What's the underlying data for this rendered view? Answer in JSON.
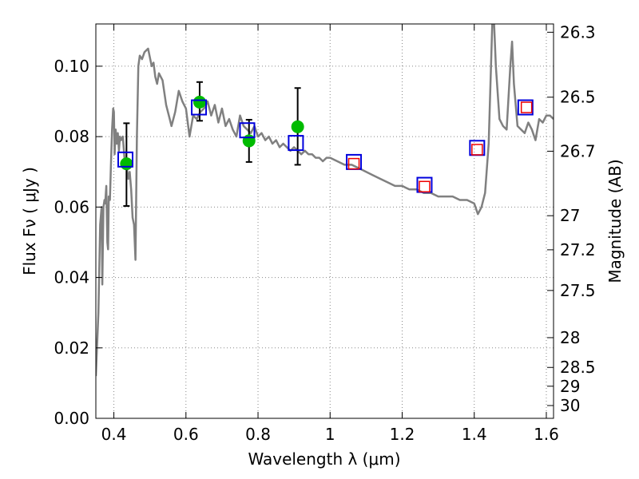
{
  "chart_data": {
    "type": "scatter",
    "xlabel": "Wavelength  λ (μm)",
    "ylabel": "Flux  Fν  ( μJy )",
    "y2label": "Magnitude (AB)",
    "xlim": [
      0.35,
      1.62
    ],
    "ylim": [
      0.0,
      0.112
    ],
    "grid": true,
    "xticks": [
      0.4,
      0.6,
      0.8,
      1.0,
      1.2,
      1.4,
      1.6
    ],
    "xtick_labels": [
      "0.4",
      "0.6",
      "0.8",
      "1",
      "1.2",
      "1.4",
      "1.6"
    ],
    "yticks": [
      0.0,
      0.02,
      0.04,
      0.06,
      0.08,
      0.1
    ],
    "ytick_labels": [
      "0.00",
      "0.02",
      "0.04",
      "0.06",
      "0.08",
      "0.10"
    ],
    "y2ticks": [
      26.3,
      26.5,
      26.7,
      27,
      27.2,
      27.5,
      28,
      28.5,
      29,
      30
    ],
    "y2tick_labels": [
      "26.3",
      "26.5",
      "26.7",
      "27",
      "27.2",
      "27.5",
      "28",
      "28.5",
      "29",
      "30"
    ],
    "colors": {
      "model": "#808080",
      "observed": "#00bb00",
      "errorbar": "#000000",
      "model_photometry": "#0000dd",
      "ir_photometry": "#ee0000",
      "grid": "#888888"
    },
    "model_sed": {
      "x": [
        0.35,
        0.357,
        0.362,
        0.366,
        0.368,
        0.371,
        0.374,
        0.376,
        0.379,
        0.382,
        0.384,
        0.386,
        0.389,
        0.392,
        0.395,
        0.398,
        0.4,
        0.402,
        0.405,
        0.408,
        0.411,
        0.414,
        0.417,
        0.42,
        0.425,
        0.43,
        0.436,
        0.44,
        0.444,
        0.448,
        0.452,
        0.456,
        0.46,
        0.464,
        0.468,
        0.472,
        0.478,
        0.485,
        0.495,
        0.505,
        0.51,
        0.515,
        0.52,
        0.525,
        0.535,
        0.545,
        0.555,
        0.56,
        0.57,
        0.58,
        0.59,
        0.6,
        0.61,
        0.62,
        0.63,
        0.64,
        0.65,
        0.66,
        0.67,
        0.68,
        0.69,
        0.7,
        0.71,
        0.72,
        0.73,
        0.74,
        0.75,
        0.76,
        0.77,
        0.78,
        0.79,
        0.8,
        0.81,
        0.82,
        0.83,
        0.84,
        0.85,
        0.86,
        0.87,
        0.88,
        0.89,
        0.9,
        0.91,
        0.92,
        0.93,
        0.94,
        0.95,
        0.96,
        0.97,
        0.98,
        0.99,
        1.0,
        1.02,
        1.04,
        1.06,
        1.08,
        1.1,
        1.12,
        1.14,
        1.16,
        1.18,
        1.2,
        1.22,
        1.24,
        1.26,
        1.28,
        1.3,
        1.32,
        1.34,
        1.36,
        1.38,
        1.4,
        1.41,
        1.42,
        1.43,
        1.44,
        1.45,
        1.455,
        1.46,
        1.47,
        1.48,
        1.49,
        1.5,
        1.505,
        1.51,
        1.52,
        1.53,
        1.54,
        1.55,
        1.56,
        1.57,
        1.58,
        1.59,
        1.6,
        1.61,
        1.62
      ],
      "y": [
        0.012,
        0.03,
        0.055,
        0.06,
        0.038,
        0.06,
        0.062,
        0.061,
        0.066,
        0.05,
        0.048,
        0.063,
        0.062,
        0.072,
        0.082,
        0.088,
        0.087,
        0.075,
        0.082,
        0.078,
        0.081,
        0.076,
        0.08,
        0.079,
        0.08,
        0.073,
        0.071,
        0.068,
        0.07,
        0.065,
        0.057,
        0.055,
        0.045,
        0.08,
        0.1,
        0.103,
        0.102,
        0.104,
        0.105,
        0.1,
        0.101,
        0.097,
        0.095,
        0.098,
        0.096,
        0.089,
        0.085,
        0.083,
        0.087,
        0.093,
        0.09,
        0.088,
        0.08,
        0.086,
        0.085,
        0.087,
        0.088,
        0.09,
        0.086,
        0.089,
        0.084,
        0.088,
        0.083,
        0.085,
        0.082,
        0.08,
        0.086,
        0.083,
        0.082,
        0.081,
        0.083,
        0.08,
        0.081,
        0.079,
        0.08,
        0.078,
        0.079,
        0.077,
        0.078,
        0.077,
        0.076,
        0.077,
        0.076,
        0.075,
        0.076,
        0.075,
        0.075,
        0.074,
        0.074,
        0.073,
        0.074,
        0.074,
        0.073,
        0.072,
        0.072,
        0.071,
        0.07,
        0.069,
        0.068,
        0.067,
        0.066,
        0.066,
        0.065,
        0.065,
        0.064,
        0.064,
        0.063,
        0.063,
        0.063,
        0.062,
        0.062,
        0.061,
        0.058,
        0.06,
        0.064,
        0.078,
        0.112,
        0.112,
        0.1,
        0.085,
        0.083,
        0.082,
        0.1,
        0.107,
        0.095,
        0.083,
        0.082,
        0.081,
        0.084,
        0.082,
        0.079,
        0.085,
        0.084,
        0.086,
        0.086,
        0.085
      ]
    },
    "observed": {
      "x": [
        0.435,
        0.638,
        0.775,
        0.91
      ],
      "y": [
        0.0723,
        0.0898,
        0.0788,
        0.0828
      ],
      "yerr_low": [
        0.0603,
        0.0845,
        0.0728,
        0.072
      ],
      "yerr_high": [
        0.0838,
        0.0955,
        0.0848,
        0.0938
      ]
    },
    "model_photometry": {
      "x": [
        0.432,
        0.636,
        0.77,
        0.905,
        1.066,
        1.262,
        1.408,
        1.542
      ],
      "y": [
        0.0735,
        0.0883,
        0.0818,
        0.0782,
        0.0728,
        0.0663,
        0.0768,
        0.0883
      ]
    },
    "ir_photometry": {
      "x": [
        1.066,
        1.262,
        1.408,
        1.545
      ],
      "y": [
        0.0723,
        0.0658,
        0.0763,
        0.0883
      ]
    }
  }
}
